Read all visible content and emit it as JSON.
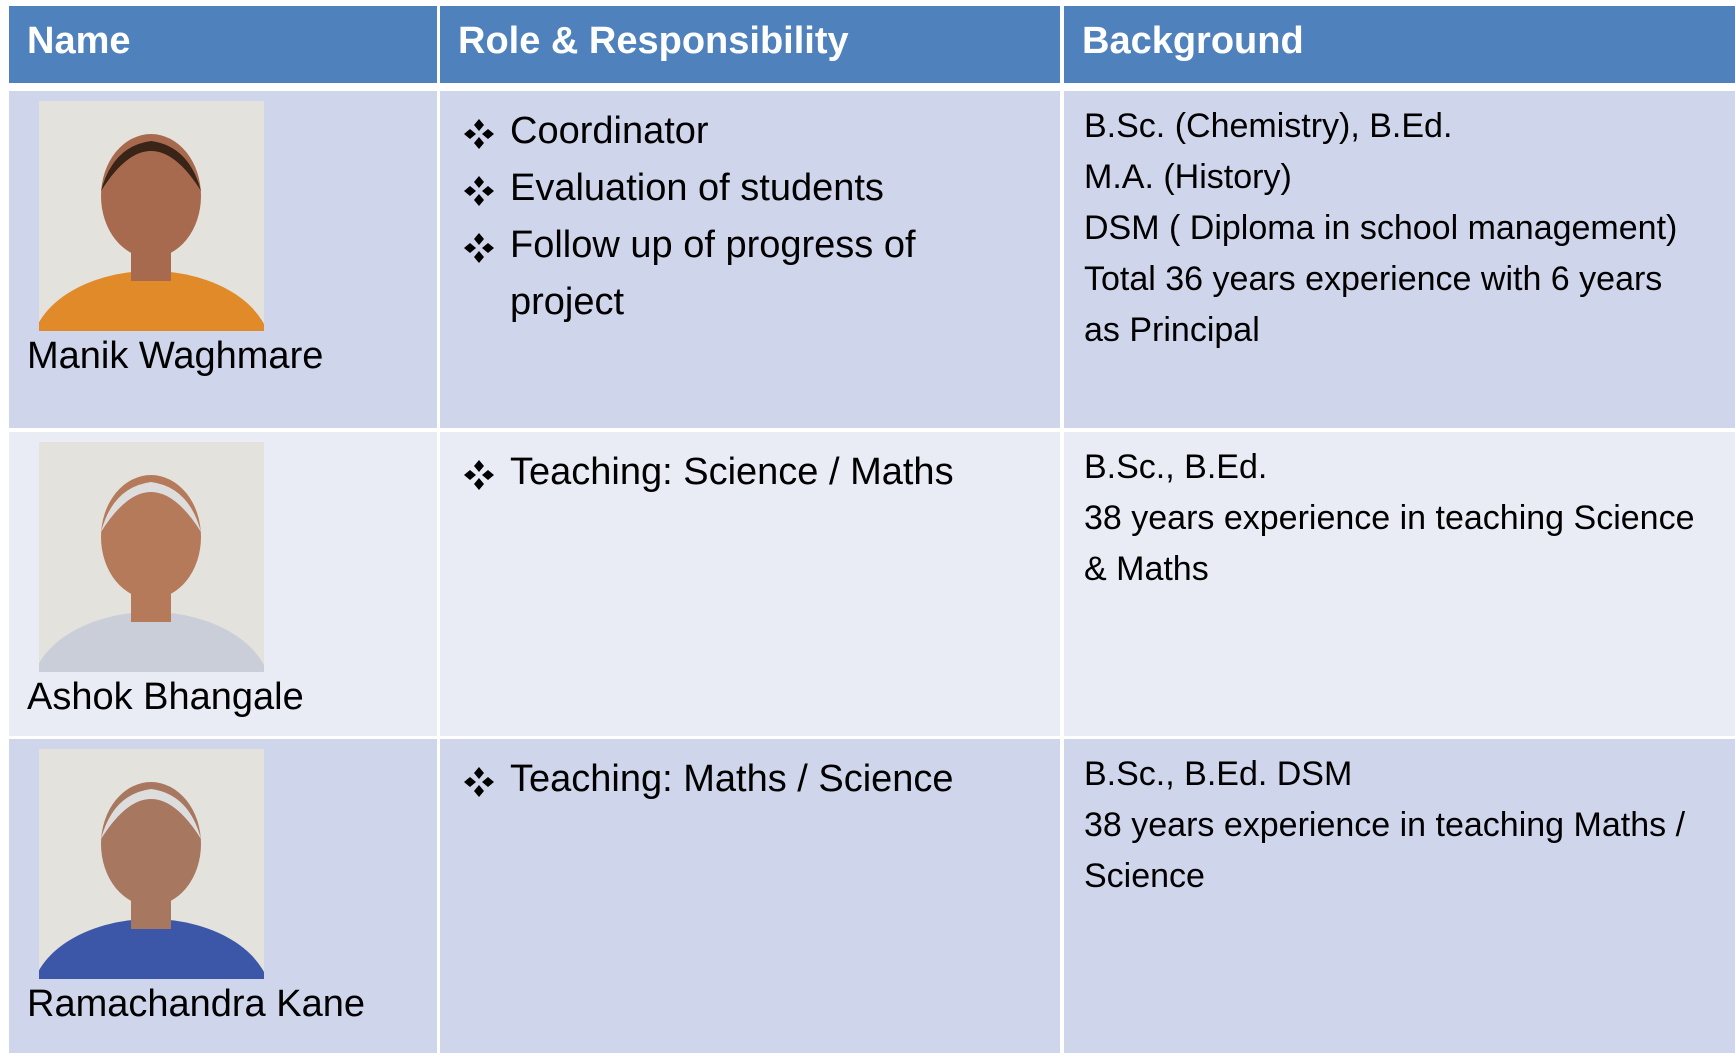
{
  "table": {
    "header": [
      "Name",
      "Role & Responsibility",
      "Background"
    ],
    "rows": [
      {
        "name": "Manik Waghmare",
        "roles": [
          "Coordinator",
          "Evaluation of students",
          "Follow up of progress of project"
        ],
        "background": [
          "B.Sc. (Chemistry), B.Ed.",
          "M.A. (History)",
          "DSM ( Diploma in school management)",
          "Total 36 years experience with 6 years as Principal"
        ]
      },
      {
        "name": "Ashok Bhangale",
        "roles": [
          "Teaching:  Science / Maths"
        ],
        "background": [
          "B.Sc., B.Ed.",
          "38 years experience  in teaching Science & Maths"
        ]
      },
      {
        "name": "Ramachandra Kane",
        "roles": [
          "Teaching:  Maths / Science"
        ],
        "background": [
          "B.Sc., B.Ed.  DSM",
          "38 years experience in teaching Maths / Science"
        ]
      }
    ]
  }
}
